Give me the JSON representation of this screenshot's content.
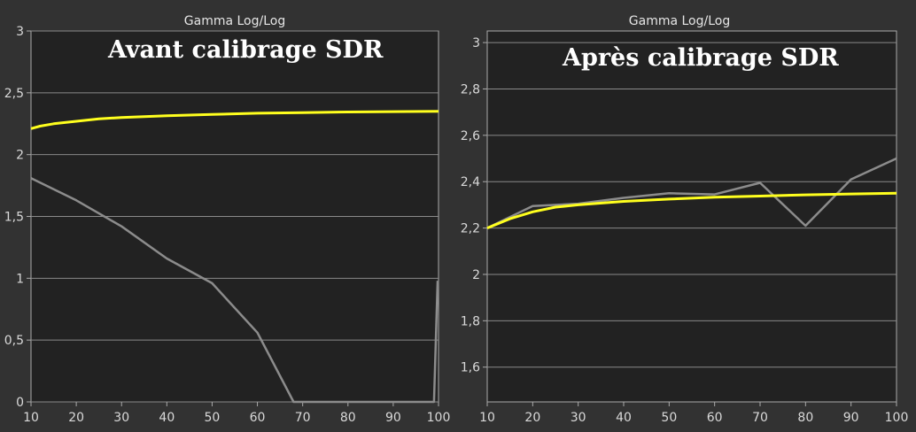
{
  "chart_data": [
    {
      "type": "line",
      "title": "Gamma Log/Log",
      "annotation": "Avant calibrage SDR",
      "xlim": [
        10,
        100
      ],
      "ylim": [
        0,
        3
      ],
      "x_ticks": [
        "10",
        "20",
        "30",
        "40",
        "50",
        "60",
        "70",
        "80",
        "90",
        "100"
      ],
      "y_ticks": [
        "0",
        "0,5",
        "1",
        "1,5",
        "2",
        "2,5",
        "3"
      ],
      "x_tick_values": [
        10,
        20,
        30,
        40,
        50,
        60,
        70,
        80,
        90,
        100
      ],
      "y_tick_values": [
        0,
        0.5,
        1,
        1.5,
        2,
        2.5,
        3
      ],
      "grid": "horizontal",
      "series": [
        {
          "color": "#ffff1e",
          "x": [
            10,
            12,
            15,
            20,
            25,
            30,
            40,
            50,
            60,
            70,
            80,
            90,
            100
          ],
          "y": [
            2.21,
            2.23,
            2.25,
            2.27,
            2.29,
            2.3,
            2.315,
            2.325,
            2.335,
            2.34,
            2.345,
            2.348,
            2.35
          ]
        },
        {
          "color": "#8c8c8c",
          "x": [
            10,
            20,
            30,
            40,
            50,
            60,
            68,
            99,
            99.8
          ],
          "y": [
            1.81,
            1.63,
            1.42,
            1.16,
            0.96,
            0.56,
            0,
            0,
            0.98
          ]
        }
      ]
    },
    {
      "type": "line",
      "title": "Gamma Log/Log",
      "annotation": "Après calibrage SDR",
      "xlim": [
        10,
        100
      ],
      "ylim": [
        1.45,
        3.05
      ],
      "x_ticks": [
        "10",
        "20",
        "30",
        "40",
        "50",
        "60",
        "70",
        "80",
        "90",
        "100"
      ],
      "y_ticks": [
        "1,6",
        "1,8",
        "2",
        "2,2",
        "2,4",
        "2,6",
        "2,8",
        "3"
      ],
      "x_tick_values": [
        10,
        20,
        30,
        40,
        50,
        60,
        70,
        80,
        90,
        100
      ],
      "y_tick_values": [
        1.6,
        1.8,
        2,
        2.2,
        2.4,
        2.6,
        2.8,
        3
      ],
      "grid": "horizontal",
      "series": [
        {
          "color": "#ffff1e",
          "x": [
            10,
            15,
            20,
            25,
            30,
            40,
            50,
            60,
            70,
            80,
            90,
            100
          ],
          "y": [
            2.2,
            2.24,
            2.27,
            2.29,
            2.3,
            2.315,
            2.325,
            2.333,
            2.338,
            2.343,
            2.347,
            2.35
          ]
        },
        {
          "color": "#8c8c8c",
          "x": [
            10,
            20,
            30,
            40,
            50,
            60,
            70,
            80,
            90,
            100
          ],
          "y": [
            2.2,
            2.295,
            2.305,
            2.33,
            2.35,
            2.345,
            2.395,
            2.21,
            2.41,
            2.5
          ]
        }
      ]
    }
  ]
}
